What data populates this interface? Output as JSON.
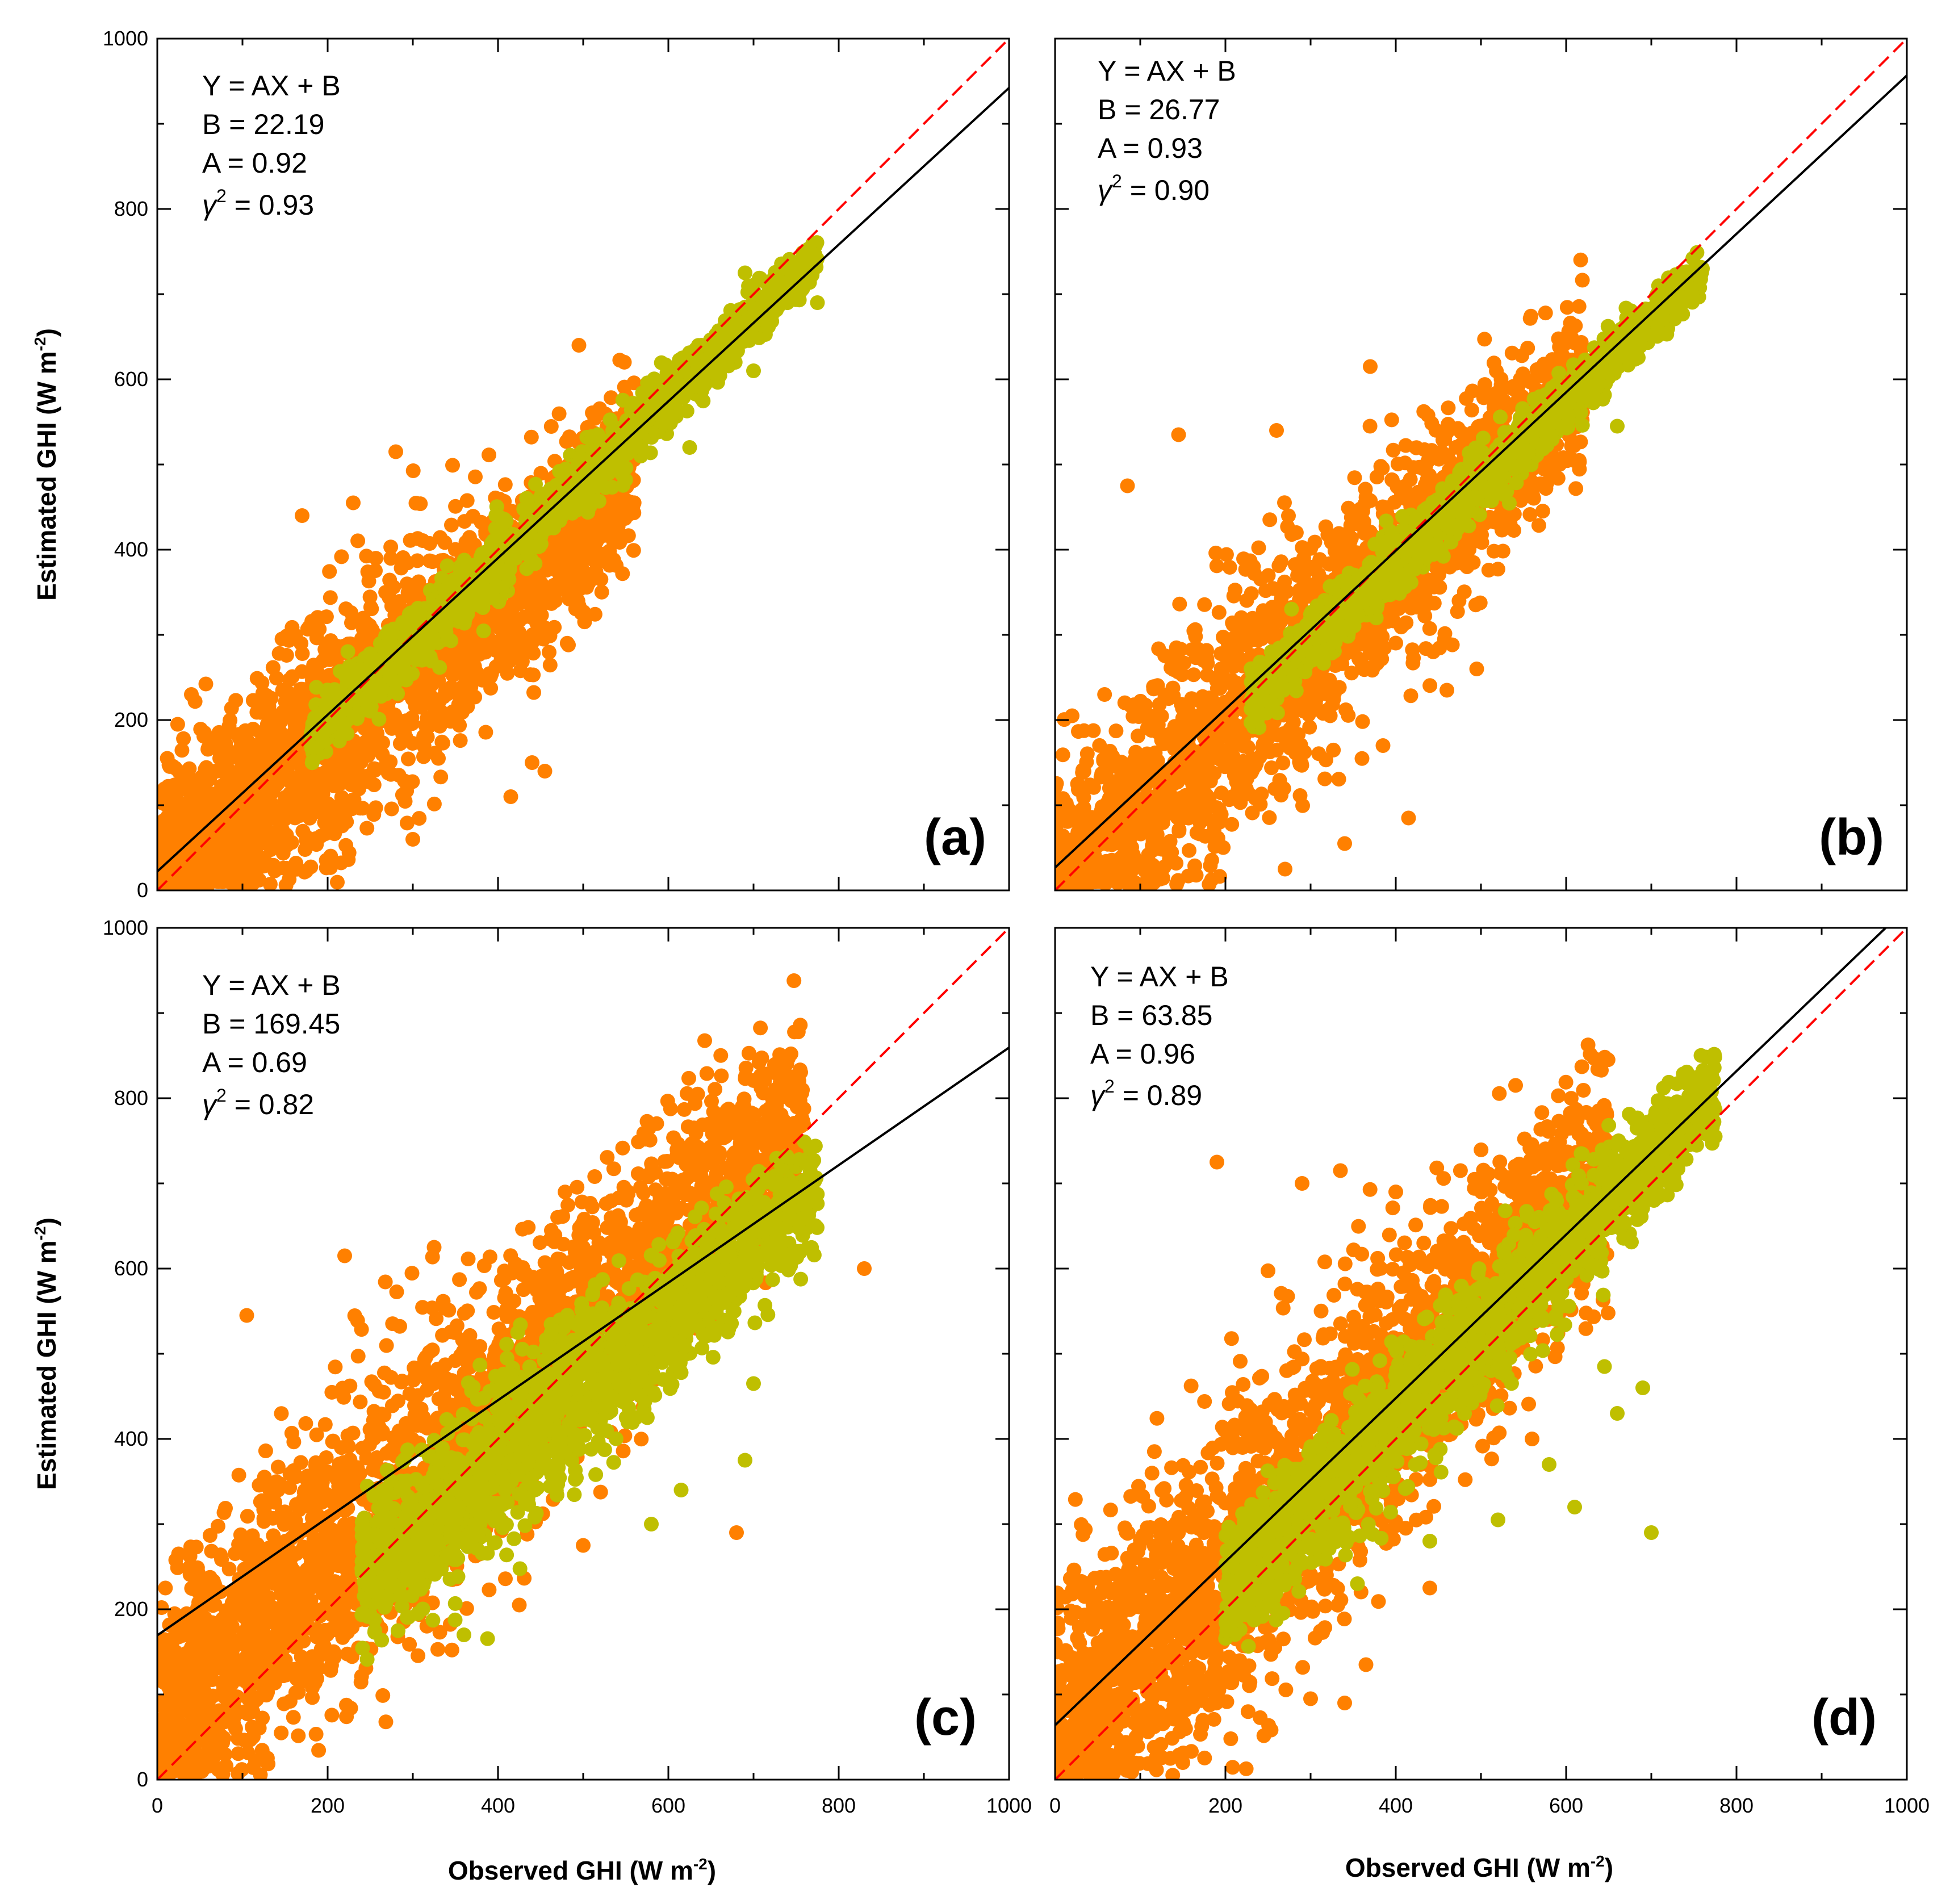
{
  "figure": {
    "x_axis_title": "Observed GHI (W m",
    "x_axis_title_sup": "-2",
    "x_axis_title_end": ")",
    "y_axis_title": "Estimated GHI (W m",
    "y_axis_title_sup": "-2",
    "y_axis_title_end": ")"
  },
  "colors": {
    "orange": "#FF8000",
    "olive": "#BFBF00",
    "fit_line": "#000000",
    "one_to_one_line": "#FF0000"
  },
  "chart_data": [
    {
      "type": "scatter",
      "panel": "(a)",
      "xlim": [
        0,
        1000
      ],
      "ylim": [
        0,
        1000
      ],
      "xticks": [
        0,
        200,
        400,
        600,
        800,
        1000
      ],
      "yticks": [
        0,
        200,
        400,
        600,
        800,
        1000
      ],
      "equation_lines": [
        "Y = AX + B",
        "B = 22.19",
        "A = 0.92"
      ],
      "r2_symbol": "γ",
      "r2_sup": "2",
      "r2_value": " = 0.93",
      "fit": {
        "slope": 0.92,
        "intercept": 22.19
      },
      "series": [
        {
          "name": "orange",
          "center_line": {
            "slope": 0.85,
            "intercept": 10
          },
          "x_range": [
            5,
            560
          ],
          "spread": 55,
          "n": 2200,
          "outliers": [
            [
              280,
              515
            ],
            [
              495,
              640
            ],
            [
              40,
              230
            ],
            [
              170,
              440
            ],
            [
              230,
              455
            ],
            [
              440,
              150
            ],
            [
              455,
              140
            ],
            [
              415,
              110
            ],
            [
              300,
              60
            ],
            [
              190,
              100
            ],
            [
              330,
              155
            ]
          ]
        },
        {
          "name": "olive",
          "center_line": {
            "slope": 0.95,
            "intercept": 8
          },
          "x_range": [
            180,
            775
          ],
          "spread": 14,
          "n": 1700,
          "outliers": [
            [
              625,
              520
            ],
            [
              700,
              610
            ],
            [
              775,
              690
            ],
            [
              690,
              725
            ]
          ]
        }
      ]
    },
    {
      "type": "scatter",
      "panel": "(b)",
      "xlim": [
        0,
        1000
      ],
      "ylim": [
        0,
        1000
      ],
      "xticks": [
        0,
        200,
        400,
        600,
        800,
        1000
      ],
      "yticks": [
        0,
        200,
        400,
        600,
        800,
        1000
      ],
      "equation_lines": [
        "Y = AX + B",
        "B = 26.77",
        "A = 0.93"
      ],
      "r2_symbol": "γ",
      "r2_sup": "2",
      "r2_value": " = 0.90",
      "fit": {
        "slope": 0.93,
        "intercept": 26.77
      },
      "series": [
        {
          "name": "orange",
          "center_line": {
            "slope": 0.95,
            "intercept": 5
          },
          "x_range": [
            0,
            620
          ],
          "spread": 55,
          "n": 2000,
          "outliers": [
            [
              145,
              535
            ],
            [
              260,
              540
            ],
            [
              370,
              615
            ],
            [
              20,
              205
            ],
            [
              85,
              475
            ],
            [
              495,
              260
            ],
            [
              415,
              85
            ],
            [
              340,
              55
            ],
            [
              270,
              25
            ],
            [
              385,
              170
            ],
            [
              460,
              235
            ]
          ]
        },
        {
          "name": "olive",
          "center_line": {
            "slope": 0.94,
            "intercept": 10
          },
          "x_range": [
            230,
            760
          ],
          "spread": 14,
          "n": 1500,
          "outliers": [
            [
              660,
              545
            ],
            [
              760,
              730
            ]
          ]
        }
      ]
    },
    {
      "type": "scatter",
      "panel": "(c)",
      "xlim": [
        0,
        1000
      ],
      "ylim": [
        0,
        1000
      ],
      "xticks": [
        0,
        200,
        400,
        600,
        800,
        1000
      ],
      "yticks": [
        0,
        200,
        400,
        600,
        800,
        1000
      ],
      "equation_lines": [
        "Y = AX + B",
        "B = 169.45",
        "A = 0.69"
      ],
      "r2_symbol": "γ",
      "r2_sup": "2",
      "r2_value": " = 0.82",
      "fit": {
        "slope": 0.69,
        "intercept": 169.45
      },
      "series": [
        {
          "name": "orange",
          "center_line": {
            "slope": 0.95,
            "intercept": 65
          },
          "x_range": [
            5,
            760
          ],
          "spread": 65,
          "n": 2600,
          "outliers": [
            [
              105,
              545
            ],
            [
              220,
              615
            ],
            [
              325,
              625
            ],
            [
              830,
              600
            ],
            [
              680,
              290
            ],
            [
              425,
              205
            ],
            [
              500,
              275
            ],
            [
              25,
              265
            ],
            [
              60,
              80
            ]
          ]
        },
        {
          "name": "olive",
          "center_line": {
            "slope": 0.86,
            "intercept": 30
          },
          "x_range": [
            240,
            775
          ],
          "spread": 35,
          "n": 1700,
          "outliers": [
            [
              360,
              170
            ],
            [
              580,
              300
            ],
            [
              615,
              340
            ],
            [
              690,
              375
            ],
            [
              700,
              465
            ],
            [
              315,
              255
            ]
          ]
        }
      ]
    },
    {
      "type": "scatter",
      "panel": "(d)",
      "xlim": [
        0,
        1000
      ],
      "ylim": [
        0,
        1000
      ],
      "xticks": [
        0,
        200,
        400,
        600,
        800,
        1000
      ],
      "yticks": [
        0,
        200,
        400,
        600,
        800,
        1000
      ],
      "equation_lines": [
        "Y = AX + B",
        "B = 63.85",
        "A = 0.96"
      ],
      "r2_symbol": "γ",
      "r2_sup": "2",
      "r2_value": " = 0.89",
      "fit": {
        "slope": 0.96,
        "intercept": 63.85
      },
      "series": [
        {
          "name": "orange",
          "center_line": {
            "slope": 1.05,
            "intercept": 40
          },
          "x_range": [
            0,
            650
          ],
          "spread": 70,
          "n": 2500,
          "outliers": [
            [
              190,
              725
            ],
            [
              290,
              700
            ],
            [
              335,
              715
            ],
            [
              400,
              690
            ],
            [
              340,
              90
            ],
            [
              300,
              95
            ],
            [
              365,
              135
            ],
            [
              150,
              20
            ],
            [
              440,
              225
            ],
            [
              560,
              400
            ]
          ]
        },
        {
          "name": "olive",
          "center_line": {
            "slope": 1.02,
            "intercept": 15
          },
          "x_range": [
            200,
            775
          ],
          "spread": 30,
          "n": 1700,
          "outliers": [
            [
              700,
              290
            ],
            [
              610,
              320
            ],
            [
              690,
              460
            ],
            [
              660,
              430
            ],
            [
              645,
              485
            ],
            [
              580,
              370
            ],
            [
              520,
              305
            ],
            [
              775,
              755
            ],
            [
              355,
              230
            ],
            [
              440,
              280
            ]
          ]
        }
      ]
    }
  ]
}
